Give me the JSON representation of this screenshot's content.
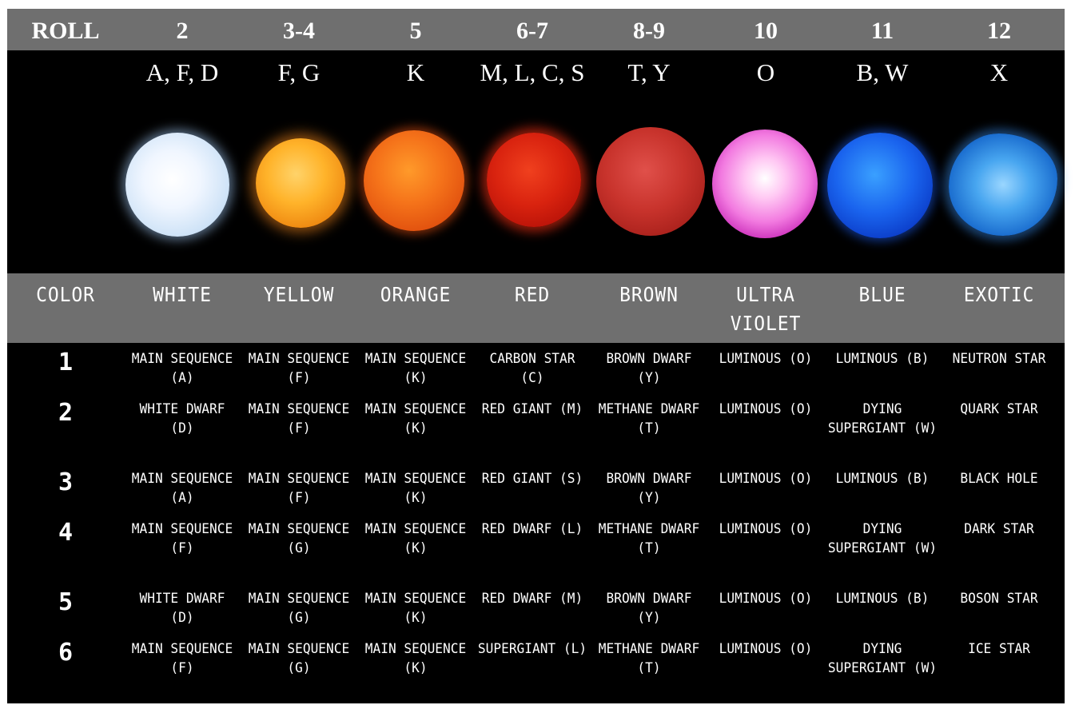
{
  "header": {
    "roll_label": "ROLL",
    "rolls": [
      "2",
      "3-4",
      "5",
      "6-7",
      "8-9",
      "10",
      "11",
      "12"
    ],
    "classes": [
      "A, F, D",
      "F, G",
      "K",
      "M, L, C, S",
      "T, Y",
      "O",
      "B, W",
      "X"
    ]
  },
  "stars": {
    "colors": [
      "#dbe9fb",
      "#ffb32a",
      "#f5731a",
      "#d9230f",
      "#c8332c",
      "#f27ae0",
      "#1a64ee",
      "#48a6f0"
    ]
  },
  "color_row": {
    "label": "COLOR",
    "colors": [
      "WHITE",
      "YELLOW",
      "ORANGE",
      "RED",
      "BROWN",
      "ULTRA VIOLET",
      "BLUE",
      "EXOTIC"
    ]
  },
  "rows": [
    {
      "roll": "1",
      "cells": [
        "MAIN SEQUENCE (A)",
        "MAIN SEQUENCE (F)",
        "MAIN SEQUENCE (K)",
        "CARBON STAR (C)",
        "BROWN DWARF (Y)",
        "LUMINOUS (O)",
        "LUMINOUS (B)",
        "NEUTRON STAR"
      ]
    },
    {
      "roll": "2",
      "cells": [
        "WHITE DWARF (D)",
        "MAIN SEQUENCE (F)",
        "MAIN SEQUENCE (K)",
        "RED GIANT (M)",
        "METHANE DWARF (T)",
        "LUMINOUS (O)",
        "DYING SUPERGIANT (W)",
        "QUARK STAR"
      ]
    },
    {
      "roll": "3",
      "cells": [
        "MAIN SEQUENCE (A)",
        "MAIN SEQUENCE (F)",
        "MAIN SEQUENCE (K)",
        "RED GIANT (S)",
        "BROWN DWARF (Y)",
        "LUMINOUS (O)",
        "LUMINOUS (B)",
        "BLACK HOLE"
      ]
    },
    {
      "roll": "4",
      "cells": [
        "MAIN SEQUENCE (F)",
        "MAIN SEQUENCE (G)",
        "MAIN SEQUENCE (K)",
        "RED DWARF (L)",
        "METHANE DWARF (T)",
        "LUMINOUS (O)",
        "DYING SUPERGIANT (W)",
        "DARK STAR"
      ]
    },
    {
      "roll": "5",
      "cells": [
        "WHITE DWARF (D)",
        "MAIN SEQUENCE (G)",
        "MAIN SEQUENCE (K)",
        "RED DWARF (M)",
        "BROWN DWARF (Y)",
        "LUMINOUS (O)",
        "LUMINOUS (B)",
        "BOSON STAR"
      ]
    },
    {
      "roll": "6",
      "cells": [
        "MAIN SEQUENCE (F)",
        "MAIN SEQUENCE (G)",
        "MAIN SEQUENCE (K)",
        "SUPERGIANT (L)",
        "METHANE DWARF (T)",
        "LUMINOUS (O)",
        "DYING SUPERGIANT (W)",
        "ICE STAR"
      ]
    }
  ]
}
